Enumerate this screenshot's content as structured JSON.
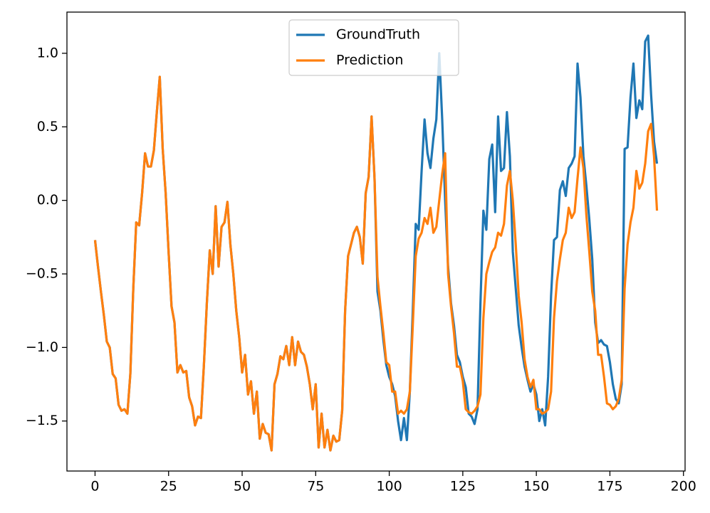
{
  "chart_data": {
    "type": "line",
    "x": [
      0,
      1,
      2,
      3,
      4,
      5,
      6,
      7,
      8,
      9,
      10,
      11,
      12,
      13,
      14,
      15,
      16,
      17,
      18,
      19,
      20,
      21,
      22,
      23,
      24,
      25,
      26,
      27,
      28,
      29,
      30,
      31,
      32,
      33,
      34,
      35,
      36,
      37,
      38,
      39,
      40,
      41,
      42,
      43,
      44,
      45,
      46,
      47,
      48,
      49,
      50,
      51,
      52,
      53,
      54,
      55,
      56,
      57,
      58,
      59,
      60,
      61,
      62,
      63,
      64,
      65,
      66,
      67,
      68,
      69,
      70,
      71,
      72,
      73,
      74,
      75,
      76,
      77,
      78,
      79,
      80,
      81,
      82,
      83,
      84,
      85,
      86,
      87,
      88,
      89,
      90,
      91,
      92,
      93,
      94,
      95,
      96,
      97,
      98,
      99,
      100,
      101,
      102,
      103,
      104,
      105,
      106,
      107,
      108,
      109,
      110,
      111,
      112,
      113,
      114,
      115,
      116,
      117,
      118,
      119,
      120,
      121,
      122,
      123,
      124,
      125,
      126,
      127,
      128,
      129,
      130,
      131,
      132,
      133,
      134,
      135,
      136,
      137,
      138,
      139,
      140,
      141,
      142,
      143,
      144,
      145,
      146,
      147,
      148,
      149,
      150,
      151,
      152,
      153,
      154,
      155,
      156,
      157,
      158,
      159,
      160,
      161,
      162,
      163,
      164,
      165,
      166,
      167,
      168,
      169,
      170,
      171,
      172,
      173,
      174,
      175,
      176,
      177,
      178,
      179,
      180,
      181,
      182,
      183,
      184,
      185,
      186,
      187,
      188,
      189,
      190,
      191
    ],
    "series": [
      {
        "name": "GroundTruth",
        "color": "#1f77b4",
        "values": [
          -0.27,
          -0.45,
          -0.62,
          -0.78,
          -0.96,
          -1.0,
          -1.18,
          -1.21,
          -1.39,
          -1.43,
          -1.42,
          -1.45,
          -1.18,
          -0.6,
          -0.15,
          -0.17,
          0.05,
          0.32,
          0.23,
          0.23,
          0.34,
          0.6,
          0.84,
          0.35,
          0.05,
          -0.35,
          -0.72,
          -0.83,
          -1.17,
          -1.12,
          -1.17,
          -1.16,
          -1.34,
          -1.4,
          -1.53,
          -1.47,
          -1.48,
          -1.12,
          -0.7,
          -0.34,
          -0.5,
          -0.04,
          -0.45,
          -0.18,
          -0.15,
          -0.01,
          -0.3,
          -0.5,
          -0.75,
          -0.93,
          -1.17,
          -1.05,
          -1.32,
          -1.23,
          -1.45,
          -1.3,
          -1.62,
          -1.52,
          -1.58,
          -1.59,
          -1.7,
          -1.25,
          -1.18,
          -1.06,
          -1.08,
          -0.99,
          -1.12,
          -0.93,
          -1.12,
          -0.96,
          -1.03,
          -1.05,
          -1.13,
          -1.25,
          -1.42,
          -1.25,
          -1.68,
          -1.45,
          -1.68,
          -1.56,
          -1.7,
          -1.6,
          -1.64,
          -1.63,
          -1.43,
          -0.75,
          -0.38,
          -0.3,
          -0.22,
          -0.18,
          -0.25,
          -0.43,
          0.05,
          0.16,
          0.57,
          0.15,
          -0.62,
          -0.75,
          -0.95,
          -1.12,
          -1.2,
          -1.25,
          -1.33,
          -1.5,
          -1.63,
          -1.48,
          -1.63,
          -1.3,
          -0.75,
          -0.16,
          -0.2,
          0.2,
          0.55,
          0.32,
          0.22,
          0.42,
          0.55,
          1.0,
          0.55,
          0.0,
          -0.45,
          -0.7,
          -0.85,
          -1.05,
          -1.1,
          -1.2,
          -1.27,
          -1.45,
          -1.47,
          -1.52,
          -1.42,
          -0.7,
          -0.07,
          -0.2,
          0.28,
          0.38,
          -0.08,
          0.57,
          0.2,
          0.22,
          0.6,
          0.3,
          -0.35,
          -0.6,
          -0.85,
          -1.0,
          -1.13,
          -1.22,
          -1.3,
          -1.25,
          -1.32,
          -1.5,
          -1.42,
          -1.53,
          -1.2,
          -0.65,
          -0.27,
          -0.25,
          0.07,
          0.13,
          0.03,
          0.22,
          0.25,
          0.3,
          0.93,
          0.7,
          0.3,
          0.1,
          -0.13,
          -0.4,
          -0.83,
          -0.97,
          -0.95,
          -0.98,
          -0.99,
          -1.1,
          -1.25,
          -1.35,
          -1.38,
          -1.25,
          0.35,
          0.36,
          0.7,
          0.93,
          0.56,
          0.68,
          0.62,
          1.08,
          1.12,
          0.72,
          0.4,
          0.25
        ]
      },
      {
        "name": "Prediction",
        "color": "#ff7f0e",
        "values": [
          -0.27,
          -0.45,
          -0.62,
          -0.78,
          -0.96,
          -1.0,
          -1.18,
          -1.21,
          -1.39,
          -1.43,
          -1.42,
          -1.45,
          -1.18,
          -0.6,
          -0.15,
          -0.17,
          0.05,
          0.32,
          0.23,
          0.23,
          0.34,
          0.6,
          0.84,
          0.35,
          0.05,
          -0.35,
          -0.72,
          -0.83,
          -1.17,
          -1.12,
          -1.17,
          -1.16,
          -1.34,
          -1.4,
          -1.53,
          -1.47,
          -1.48,
          -1.12,
          -0.7,
          -0.34,
          -0.5,
          -0.04,
          -0.45,
          -0.18,
          -0.15,
          -0.01,
          -0.3,
          -0.5,
          -0.75,
          -0.93,
          -1.17,
          -1.05,
          -1.32,
          -1.23,
          -1.45,
          -1.3,
          -1.62,
          -1.52,
          -1.58,
          -1.59,
          -1.7,
          -1.25,
          -1.18,
          -1.06,
          -1.08,
          -0.99,
          -1.12,
          -0.93,
          -1.12,
          -0.96,
          -1.03,
          -1.05,
          -1.13,
          -1.25,
          -1.42,
          -1.25,
          -1.68,
          -1.45,
          -1.68,
          -1.56,
          -1.7,
          -1.6,
          -1.64,
          -1.63,
          -1.43,
          -0.75,
          -0.38,
          -0.3,
          -0.22,
          -0.18,
          -0.25,
          -0.43,
          0.05,
          0.16,
          0.57,
          0.15,
          -0.52,
          -0.72,
          -0.9,
          -1.1,
          -1.12,
          -1.3,
          -1.3,
          -1.45,
          -1.43,
          -1.45,
          -1.42,
          -1.3,
          -0.85,
          -0.38,
          -0.26,
          -0.22,
          -0.12,
          -0.16,
          -0.05,
          -0.22,
          -0.18,
          0.0,
          0.18,
          0.32,
          -0.5,
          -0.72,
          -0.9,
          -1.13,
          -1.13,
          -1.23,
          -1.42,
          -1.44,
          -1.45,
          -1.43,
          -1.4,
          -1.32,
          -0.8,
          -0.5,
          -0.42,
          -0.35,
          -0.32,
          -0.22,
          -0.24,
          -0.16,
          0.1,
          0.2,
          0.0,
          -0.3,
          -0.65,
          -0.83,
          -1.08,
          -1.2,
          -1.27,
          -1.22,
          -1.42,
          -1.42,
          -1.45,
          -1.44,
          -1.42,
          -1.3,
          -0.8,
          -0.55,
          -0.4,
          -0.27,
          -0.22,
          -0.05,
          -0.12,
          -0.08,
          0.15,
          0.36,
          0.22,
          -0.1,
          -0.35,
          -0.62,
          -0.75,
          -1.05,
          -1.05,
          -1.2,
          -1.38,
          -1.39,
          -1.42,
          -1.4,
          -1.35,
          -1.22,
          -0.6,
          -0.3,
          -0.15,
          -0.05,
          0.2,
          0.08,
          0.12,
          0.25,
          0.47,
          0.52,
          0.3,
          -0.07
        ]
      }
    ],
    "xlim": [
      -9.55,
      200.55
    ],
    "ylim": [
      -1.84,
      1.28
    ],
    "xticks": [
      0,
      25,
      50,
      75,
      100,
      125,
      150,
      175,
      200
    ],
    "yticks": [
      {
        "value": -1.5,
        "label": "−1.5"
      },
      {
        "value": -1.0,
        "label": "−1.0"
      },
      {
        "value": -0.5,
        "label": "−0.5"
      },
      {
        "value": 0,
        "label": "0.0"
      },
      0.5,
      {
        "value": 1.0,
        "label": "1.0"
      }
    ],
    "legend": "upper center"
  }
}
